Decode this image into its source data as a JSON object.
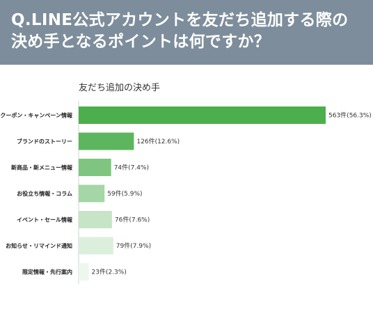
{
  "header": {
    "question_line1": "Q.LINE公式アカウントを友だち追加する際の",
    "question_line2": "決め手となるポイントは何ですか？"
  },
  "chart_data": {
    "type": "bar",
    "orientation": "horizontal",
    "title": "友だち追加の決め手",
    "categories": [
      "クーポン・キャンペーン情報",
      "ブランドのストーリー",
      "新商品・新メニュー情報",
      "お役立ち情報・コラム",
      "イベント・セール情報",
      "お知らせ・リマインド通知",
      "限定情報・先行案内"
    ],
    "values": [
      563,
      126,
      74,
      59,
      76,
      79,
      23
    ],
    "data_labels": [
      "563件(56.3%)",
      "126件(12.6%)",
      "74件(7.4%)",
      "59件(5.9%)",
      "76件(7.6%)",
      "79件(7.9%)",
      "23件(2.3%)"
    ],
    "bar_colors": [
      "#4cae4c",
      "#5db65d",
      "#7fc57f",
      "#a5d6a5",
      "#c6e5c6",
      "#dcefdc",
      "#eef7ee"
    ],
    "xlim": [
      0,
      563
    ],
    "grid": false,
    "legend": "none"
  }
}
